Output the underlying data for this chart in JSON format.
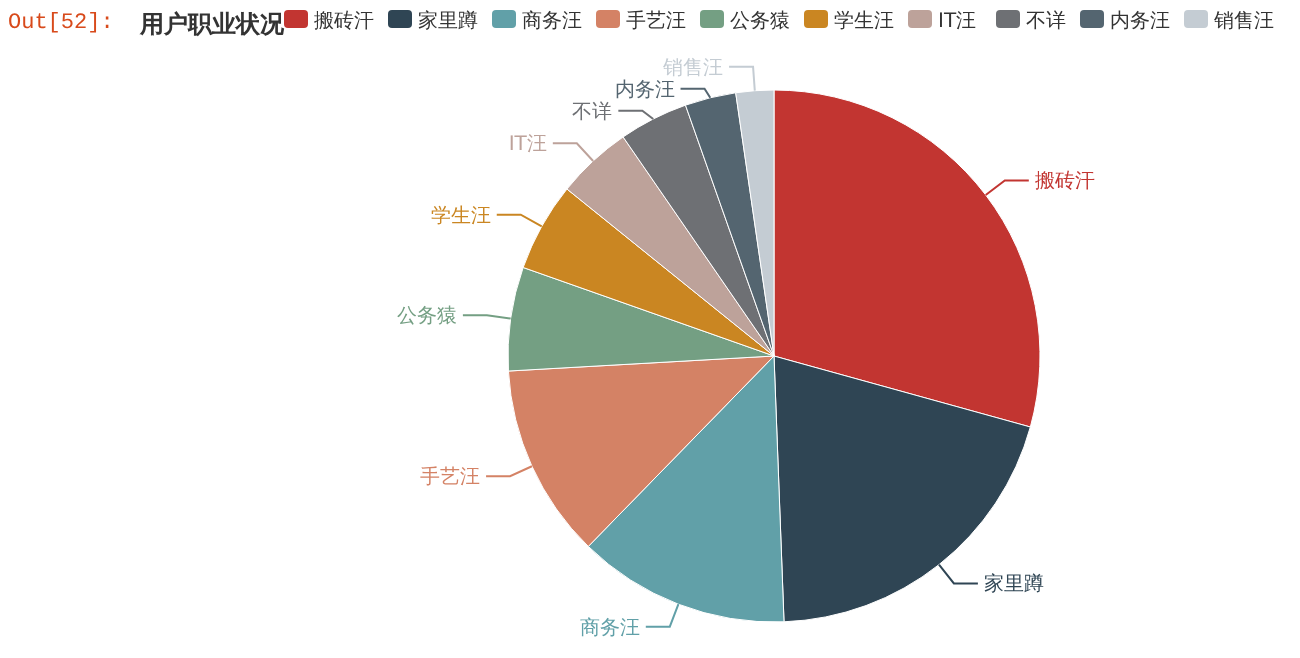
{
  "chart_data": {
    "type": "pie",
    "title": "用户职业状况",
    "annotations": [
      "Out[52]:"
    ],
    "categories": [
      "搬砖汗",
      "家里蹲",
      "商务汪",
      "手艺汪",
      "公务猿",
      "学生汪",
      "IT汪",
      "不详",
      "内务汪",
      "销售汪"
    ],
    "values": [
      29.3,
      20.1,
      12.9,
      11.8,
      6.3,
      5.4,
      4.6,
      4.2,
      3.1,
      2.3
    ],
    "colors": [
      "#c23531",
      "#2f4554",
      "#61a0a8",
      "#d48265",
      "#749f83",
      "#ca8622",
      "#bda29a",
      "#6e7074",
      "#546570",
      "#c4ccd3"
    ],
    "legend": "top"
  }
}
